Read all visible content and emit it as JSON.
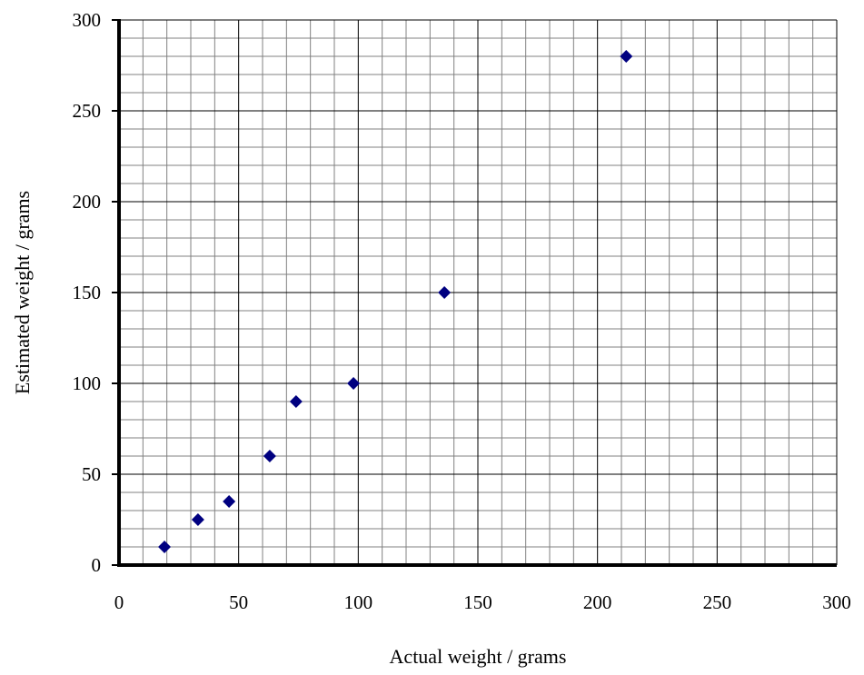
{
  "chart_data": {
    "type": "scatter",
    "title": "",
    "xlabel": "Actual weight / grams",
    "ylabel": "Estimated weight / grams",
    "xlim": [
      0,
      300
    ],
    "ylim": [
      0,
      300
    ],
    "x_ticks": [
      0,
      50,
      100,
      150,
      200,
      250,
      300
    ],
    "y_ticks": [
      0,
      50,
      100,
      150,
      200,
      250,
      300
    ],
    "x_tick_labels": [
      "0",
      "50",
      "100",
      "150",
      "200",
      "250",
      "300"
    ],
    "y_tick_labels": [
      "0",
      "50",
      "100",
      "150",
      "200",
      "250",
      "300"
    ],
    "minor_grid_step": 10,
    "grid": true,
    "legend": "none",
    "marker": "diamond",
    "series": [
      {
        "points": [
          {
            "x": 19,
            "y": 10
          },
          {
            "x": 33,
            "y": 25
          },
          {
            "x": 46,
            "y": 35
          },
          {
            "x": 63,
            "y": 60
          },
          {
            "x": 74,
            "y": 90
          },
          {
            "x": 98,
            "y": 100
          },
          {
            "x": 136,
            "y": 150
          },
          {
            "x": 212,
            "y": 280
          }
        ]
      }
    ],
    "colors": {
      "marker": "#000080",
      "minor_grid": "#808080",
      "major_grid": "#000000",
      "axis": "#000000"
    }
  }
}
